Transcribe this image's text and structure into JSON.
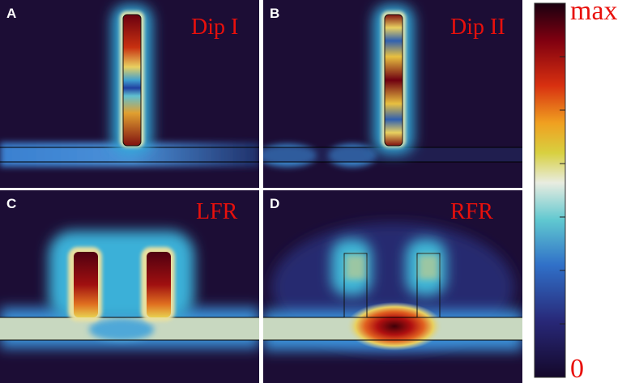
{
  "panels": [
    {
      "letter": "A",
      "label": "Dip I"
    },
    {
      "letter": "B",
      "label": "Dip II"
    },
    {
      "letter": "C",
      "label": "LFR"
    },
    {
      "letter": "D",
      "label": "RFR"
    }
  ],
  "colorbar": {
    "max_label": "max",
    "min_label": "0"
  }
}
